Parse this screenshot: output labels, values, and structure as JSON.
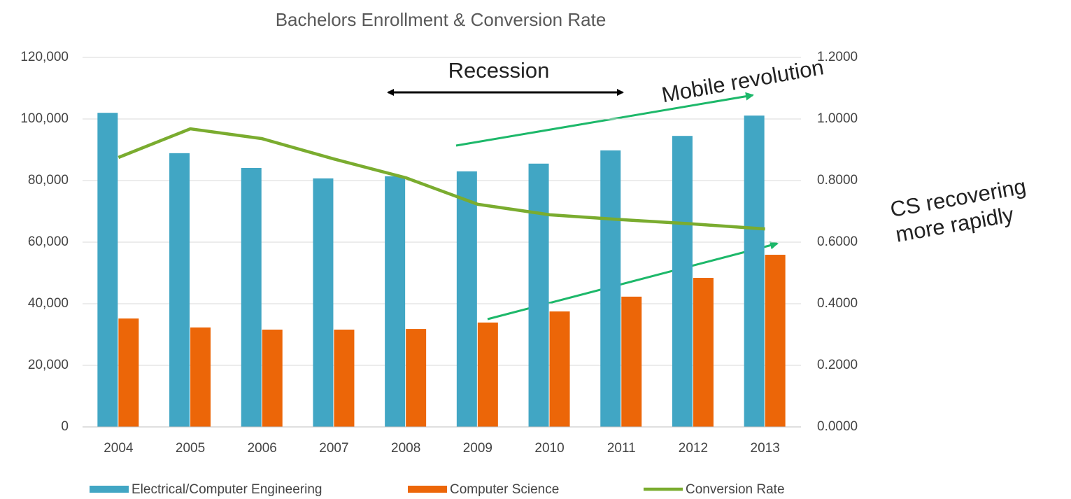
{
  "chart_data": {
    "type": "bar",
    "title": "Bachelors Enrollment & Conversion Rate",
    "categories": [
      "2004",
      "2005",
      "2006",
      "2007",
      "2008",
      "2009",
      "2010",
      "2011",
      "2012",
      "2013"
    ],
    "series": [
      {
        "name": "Electrical/Computer Engineering",
        "type": "bar",
        "color": "#41a6c4",
        "values": [
          102000,
          88900,
          84100,
          80700,
          81400,
          83000,
          85500,
          89800,
          94500,
          101100
        ]
      },
      {
        "name": "Computer Science",
        "type": "bar",
        "color": "#ec6608",
        "values": [
          35200,
          32300,
          31600,
          31600,
          31800,
          33900,
          37500,
          42300,
          48400,
          55900
        ]
      },
      {
        "name": "Conversion Rate",
        "type": "line",
        "axis": "y2",
        "color": "#7aac2f",
        "values": [
          0.875,
          0.968,
          0.936,
          0.87,
          0.809,
          0.723,
          0.689,
          0.673,
          0.659,
          0.643
        ]
      }
    ],
    "ylim": [
      0,
      120000
    ],
    "yticks": [
      0,
      {
        "value": 20000,
        "label": "20,000"
      },
      {
        "value": 40000,
        "label": "40,000"
      },
      {
        "value": 60000,
        "label": "60,000"
      },
      {
        "value": 80000,
        "label": "80,000"
      },
      {
        "value": 100000,
        "label": "100,000"
      },
      {
        "value": 120000,
        "label": "120,000"
      }
    ],
    "y2lim": [
      0,
      1.2
    ],
    "y2ticks": [
      {
        "value": 0,
        "label": "0.0000"
      },
      {
        "value": 0.2,
        "label": "0.2000"
      },
      {
        "value": 0.4,
        "label": "0.4000"
      },
      {
        "value": 0.6,
        "label": "0.6000"
      },
      {
        "value": 0.8,
        "label": "0.8000"
      },
      {
        "value": 1.0,
        "label": "1.0000"
      },
      {
        "value": 1.2,
        "label": "1.2000"
      }
    ],
    "grid": true,
    "legend": "bottom",
    "annotations": [
      {
        "text": "Recession"
      },
      {
        "text": "Mobile revolution"
      },
      {
        "text": "CS recovering"
      },
      {
        "text": "more rapidly"
      }
    ]
  }
}
